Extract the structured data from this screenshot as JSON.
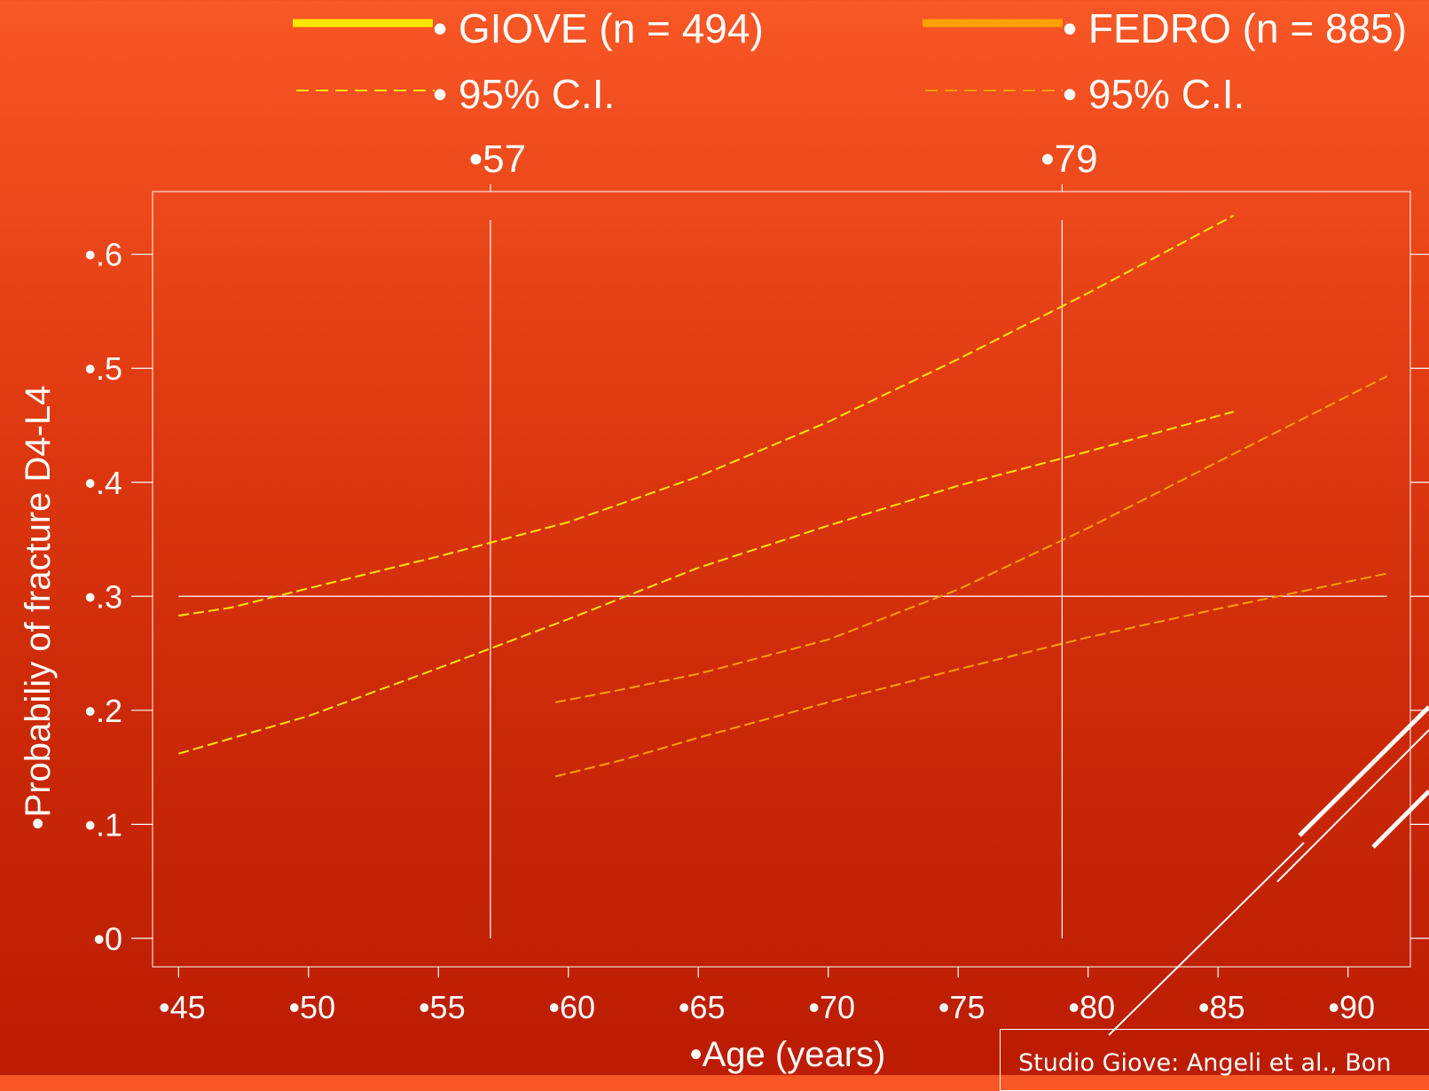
{
  "legend": [
    {
      "label": "• GIOVE (n = 494)",
      "color": "#ffe600",
      "style": "solid"
    },
    {
      "label": "• 95% C.I.",
      "color": "#ffe600",
      "style": "dashed"
    },
    {
      "label": "• FEDRO (n = 885)",
      "color": "#ffa000",
      "style": "solid"
    },
    {
      "label": "• 95% C.I.",
      "color": "#ffa000",
      "style": "dashed"
    }
  ],
  "source_note": "Studio Giove: Angeli et al., Bon",
  "chart_data": {
    "type": "line",
    "title": "",
    "xlabel": "•Age (years)",
    "ylabel": "•Probabiliy of fracture D4-L4",
    "xlim": [
      44,
      92.4
    ],
    "ylim": [
      -0.025,
      0.655
    ],
    "xticks": [
      45,
      50,
      55,
      60,
      65,
      70,
      75,
      80,
      85,
      90
    ],
    "xtick_labels": [
      "•45",
      "•50",
      "•55",
      "•60",
      "•65",
      "•70",
      "•75",
      "•80",
      "•85",
      "•90"
    ],
    "yticks": [
      0,
      0.1,
      0.2,
      0.3,
      0.4,
      0.5,
      0.6
    ],
    "ytick_labels": [
      "•0",
      "•.1",
      "•.2",
      "•.3",
      "•.4",
      "•.5",
      "•.6"
    ],
    "reference_lines": {
      "vertical": [
        {
          "x": 57,
          "label": "•57"
        },
        {
          "x": 79,
          "label": "•79"
        }
      ],
      "horizontal": [
        {
          "y": 0.3
        }
      ]
    },
    "colors": {
      "giove": "#ffe600",
      "fedro": "#ffa000",
      "reference": "#ffffff"
    },
    "series": [
      {
        "group": "giove",
        "style": "dashed",
        "x": [
          45,
          47,
          50,
          55,
          60,
          65,
          70,
          75,
          80,
          85.6
        ],
        "y": [
          0.283,
          0.29,
          0.307,
          0.335,
          0.365,
          0.405,
          0.453,
          0.508,
          0.566,
          0.634
        ]
      },
      {
        "group": "giove",
        "style": "dashed",
        "x": [
          45,
          50,
          55,
          60,
          65,
          70,
          75,
          80,
          85.6
        ],
        "y": [
          0.162,
          0.195,
          0.237,
          0.28,
          0.325,
          0.362,
          0.397,
          0.427,
          0.462
        ]
      },
      {
        "group": "fedro",
        "style": "dashed",
        "x": [
          59.5,
          62,
          65,
          70,
          75,
          80,
          85,
          91.5
        ],
        "y": [
          0.207,
          0.218,
          0.232,
          0.262,
          0.306,
          0.36,
          0.418,
          0.493
        ]
      },
      {
        "group": "fedro",
        "style": "dashed",
        "x": [
          59.5,
          62,
          65,
          70,
          75,
          80,
          85,
          91.5
        ],
        "y": [
          0.142,
          0.156,
          0.176,
          0.207,
          0.236,
          0.264,
          0.289,
          0.32
        ]
      }
    ]
  }
}
